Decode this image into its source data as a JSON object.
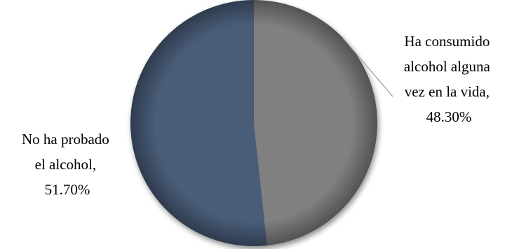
{
  "chart_data": {
    "type": "pie",
    "slices": [
      {
        "label_lines": [
          "Ha consumido",
          "alcohol alguna",
          "vez en la vida,"
        ],
        "value": 48.3,
        "value_text": "48.30%",
        "color": "#808080"
      },
      {
        "label_lines": [
          "No ha probado",
          "el alcohol,"
        ],
        "value": 51.7,
        "value_text": "51.70%",
        "color": "#4a5b78"
      }
    ],
    "start_angle": "12 o'clock",
    "direction": "clockwise",
    "legend": "none",
    "data_labels": "outside with leader line"
  }
}
